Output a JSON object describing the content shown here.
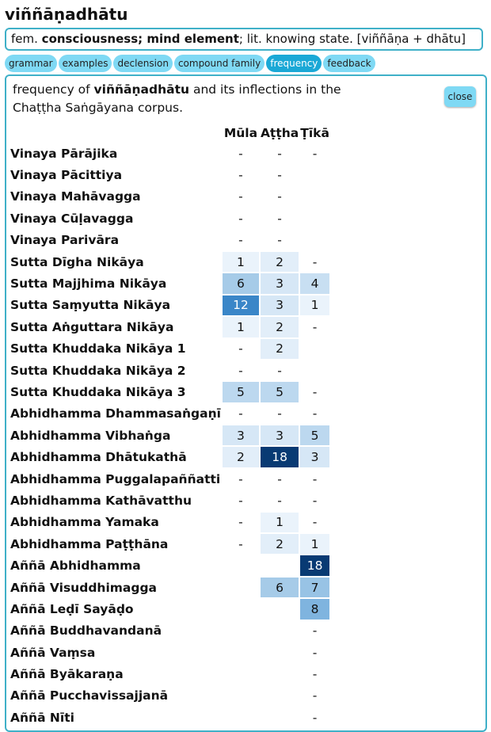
{
  "headword": "viññāṇadhātu",
  "summary": {
    "gender": "fem.",
    "meaning": "consciousness; mind element",
    "literal": "; lit. knowing state. [viññāṇa + dhātu]"
  },
  "tabs": [
    {
      "label": "grammar",
      "active": false
    },
    {
      "label": "examples",
      "active": false
    },
    {
      "label": "declension",
      "active": false
    },
    {
      "label": "compound family",
      "active": false
    },
    {
      "label": "frequency",
      "active": true
    },
    {
      "label": "feedback",
      "active": false
    }
  ],
  "frequency": {
    "intro_pre": "frequency of ",
    "intro_word": "viññāṇadhātu",
    "intro_post": " and its inflections in the Chaṭṭha Saṅgāyana corpus.",
    "close_label": "close",
    "columns": [
      "Mūla",
      "Aṭṭha",
      "Ṭīkā"
    ],
    "rows": [
      {
        "book": "Vinaya Pārājika",
        "cells": [
          "-",
          "-",
          "-"
        ]
      },
      {
        "book": "Vinaya Pācittiya",
        "cells": [
          "-",
          "-",
          ""
        ]
      },
      {
        "book": "Vinaya Mahāvagga",
        "cells": [
          "-",
          "-",
          ""
        ]
      },
      {
        "book": "Vinaya Cūḷavagga",
        "cells": [
          "-",
          "-",
          ""
        ]
      },
      {
        "book": "Vinaya Parivāra",
        "cells": [
          "-",
          "-",
          ""
        ]
      },
      {
        "book": "Sutta Dīgha Nikāya",
        "cells": [
          "1",
          "2",
          "-"
        ]
      },
      {
        "book": "Sutta Majjhima Nikāya",
        "cells": [
          "6",
          "3",
          "4"
        ]
      },
      {
        "book": "Sutta Saṃyutta Nikāya",
        "cells": [
          "12",
          "3",
          "1"
        ]
      },
      {
        "book": "Sutta Aṅguttara Nikāya",
        "cells": [
          "1",
          "2",
          "-"
        ]
      },
      {
        "book": "Sutta Khuddaka Nikāya 1",
        "cells": [
          "-",
          "2",
          ""
        ]
      },
      {
        "book": "Sutta Khuddaka Nikāya 2",
        "cells": [
          "-",
          "-",
          ""
        ]
      },
      {
        "book": "Sutta Khuddaka Nikāya 3",
        "cells": [
          "5",
          "5",
          "-"
        ]
      },
      {
        "book": "Abhidhamma Dhammasaṅgaṇī",
        "cells": [
          "-",
          "-",
          "-"
        ]
      },
      {
        "book": "Abhidhamma Vibhaṅga",
        "cells": [
          "3",
          "3",
          "5"
        ]
      },
      {
        "book": "Abhidhamma Dhātukathā",
        "cells": [
          "2",
          "18",
          "3"
        ]
      },
      {
        "book": "Abhidhamma Puggalapaññatti",
        "cells": [
          "-",
          "-",
          "-"
        ]
      },
      {
        "book": "Abhidhamma Kathāvatthu",
        "cells": [
          "-",
          "-",
          "-"
        ]
      },
      {
        "book": "Abhidhamma Yamaka",
        "cells": [
          "-",
          "1",
          "-"
        ]
      },
      {
        "book": "Abhidhamma Paṭṭhāna",
        "cells": [
          "-",
          "2",
          "1"
        ]
      },
      {
        "book": "Aññā Abhidhamma",
        "cells": [
          "",
          "",
          "18"
        ]
      },
      {
        "book": "Aññā Visuddhimagga",
        "cells": [
          "",
          "6",
          "7"
        ]
      },
      {
        "book": "Aññā Leḍī Sayāḍo",
        "cells": [
          "",
          "",
          "8"
        ]
      },
      {
        "book": "Aññā Buddhavandanā",
        "cells": [
          "",
          "",
          "-"
        ]
      },
      {
        "book": "Aññā Vaṃsa",
        "cells": [
          "",
          "",
          "-"
        ]
      },
      {
        "book": "Aññā Byākaraṇa",
        "cells": [
          "",
          "",
          "-"
        ]
      },
      {
        "book": "Aññā Pucchavissajjanā",
        "cells": [
          "",
          "",
          "-"
        ]
      },
      {
        "book": "Aññā Nīti",
        "cells": [
          "",
          "",
          "-"
        ]
      }
    ],
    "colors": {
      "dash": "#ffffff",
      "1": "#eaf3fb",
      "2": "#e2eef9",
      "3": "#d6e7f6",
      "4": "#c8dff2",
      "5": "#bcd8ef",
      "6": "#a6cbe8",
      "7": "#98c3e5",
      "8": "#7fb4df",
      "12": "#3a86c8",
      "18": "#083a73"
    }
  }
}
